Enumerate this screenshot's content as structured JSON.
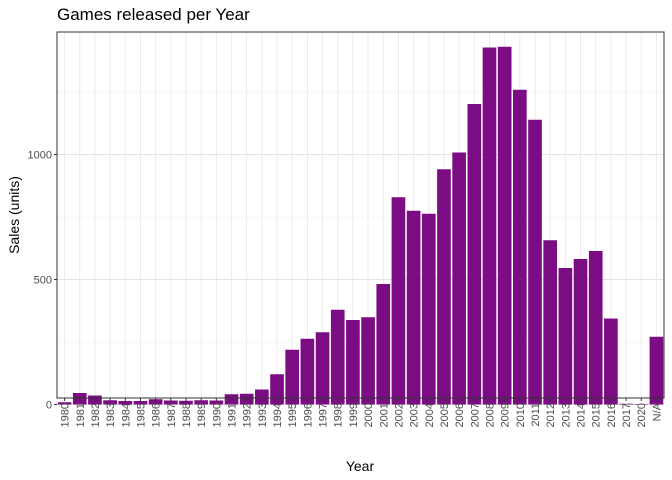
{
  "chart_data": {
    "type": "bar",
    "title": "Games released per Year",
    "xlabel": "Year",
    "ylabel": "Sales (units)",
    "categories": [
      "1980",
      "1981",
      "1982",
      "1983",
      "1984",
      "1985",
      "1986",
      "1987",
      "1988",
      "1989",
      "1990",
      "1991",
      "1992",
      "1993",
      "1994",
      "1995",
      "1996",
      "1997",
      "1998",
      "1999",
      "2000",
      "2001",
      "2002",
      "2003",
      "2004",
      "2005",
      "2006",
      "2007",
      "2008",
      "2009",
      "2010",
      "2011",
      "2012",
      "2013",
      "2014",
      "2015",
      "2016",
      "2017",
      "2020",
      "N/A"
    ],
    "values": [
      9,
      46,
      36,
      17,
      14,
      14,
      21,
      16,
      15,
      17,
      16,
      41,
      43,
      60,
      121,
      219,
      263,
      289,
      379,
      338,
      349,
      482,
      829,
      775,
      763,
      941,
      1008,
      1202,
      1428,
      1431,
      1259,
      1139,
      657,
      546,
      582,
      614,
      344,
      3,
      1,
      271
    ],
    "ylim": [
      0,
      1500
    ],
    "yticks": [
      0,
      500,
      1000
    ],
    "bar_color": "#7b0c83",
    "grid": true,
    "legend": "none"
  }
}
